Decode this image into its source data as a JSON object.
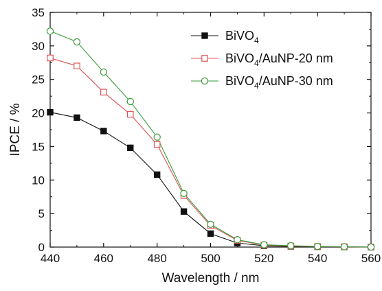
{
  "chart_data": {
    "type": "line",
    "xlabel": "Wavelength / nm",
    "ylabel": "IPCE / %",
    "xlim": [
      440,
      560
    ],
    "ylim": [
      0,
      35
    ],
    "xticks": [
      440,
      460,
      480,
      500,
      520,
      540,
      560
    ],
    "yticks": [
      0,
      5,
      10,
      15,
      20,
      25,
      30,
      35
    ],
    "grid": false,
    "legend_position": "top-right",
    "series": [
      {
        "name": "BiVO4",
        "legend_parts": [
          "BiVO",
          "4",
          ""
        ],
        "marker": "filled-square",
        "color": "#111111",
        "x": [
          440,
          450,
          460,
          470,
          480,
          490,
          500,
          510,
          520,
          530,
          540,
          550,
          560
        ],
        "y": [
          20.1,
          19.3,
          17.3,
          14.8,
          10.8,
          5.3,
          2.0,
          0.6,
          0.2,
          0.1,
          0.05,
          0.02,
          0.0
        ]
      },
      {
        "name": "BiVO4/AuNP-20 nm",
        "legend_parts": [
          "BiVO",
          "4",
          "/AuNP-20 nm"
        ],
        "marker": "open-square",
        "color": "#e05252",
        "x": [
          440,
          450,
          460,
          470,
          480,
          490,
          500,
          510,
          520,
          530,
          540,
          550,
          560
        ],
        "y": [
          28.2,
          27.0,
          23.1,
          19.8,
          15.3,
          7.7,
          3.2,
          1.0,
          0.3,
          0.15,
          0.08,
          0.04,
          0.0
        ]
      },
      {
        "name": "BiVO4/AuNP-30 nm",
        "legend_parts": [
          "BiVO",
          "4",
          "/AuNP-30 nm"
        ],
        "marker": "open-circle",
        "color": "#3a9a3a",
        "x": [
          440,
          450,
          460,
          470,
          480,
          490,
          500,
          510,
          520,
          530,
          540,
          550,
          560
        ],
        "y": [
          32.2,
          30.6,
          26.1,
          21.7,
          16.4,
          8.0,
          3.4,
          1.1,
          0.35,
          0.2,
          0.1,
          0.05,
          0.0
        ]
      }
    ]
  }
}
